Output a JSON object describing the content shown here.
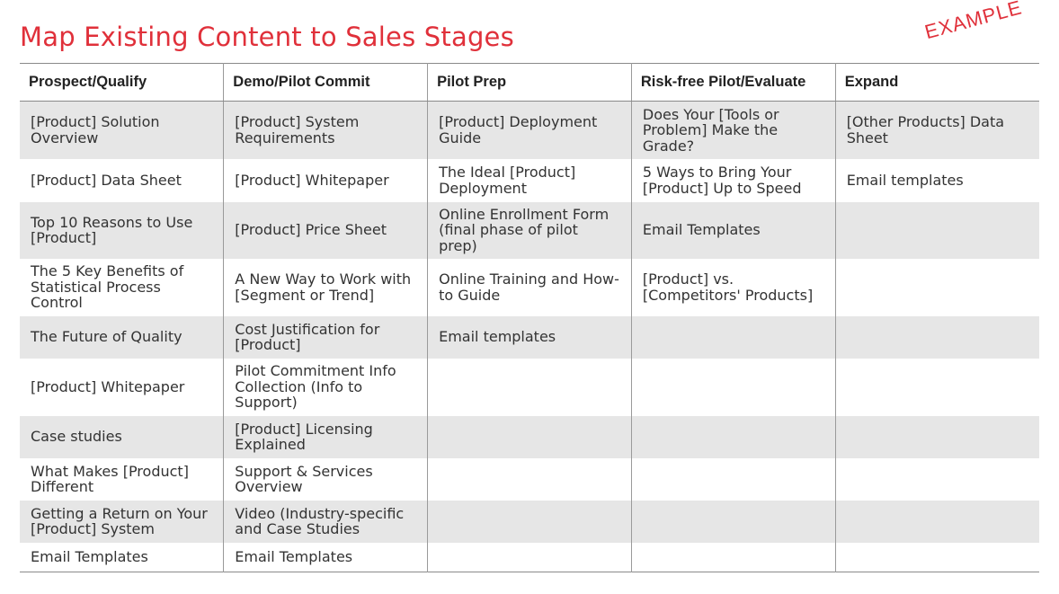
{
  "title": "Map Existing Content to Sales Stages",
  "stamp": "EXAMPLE",
  "accent_color": "#e0303a",
  "table": {
    "headers": [
      "Prospect/Qualify",
      "Demo/Pilot Commit",
      "Pilot Prep",
      "Risk-free Pilot/Evaluate",
      "Expand"
    ],
    "rows": [
      [
        "[Product] Solution Overview",
        "[Product] System Requirements",
        "[Product] Deployment Guide",
        "Does Your [Tools or Problem] Make the Grade?",
        "[Other Products] Data Sheet"
      ],
      [
        "[Product] Data Sheet",
        "[Product] Whitepaper",
        "The Ideal [Product] Deployment",
        "5 Ways to Bring Your [Product] Up to Speed",
        "Email templates"
      ],
      [
        "Top 10 Reasons to Use [Product]",
        "[Product] Price Sheet",
        "Online Enrollment Form (final phase of pilot prep)",
        "Email Templates",
        ""
      ],
      [
        "The 5 Key Benefits of Statistical Process Control",
        "A New Way to Work with [Segment or Trend]",
        "Online Training and How-to Guide",
        "[Product] vs. [Competitors' Products]",
        ""
      ],
      [
        "The Future of Quality",
        "Cost Justification for [Product]",
        "Email templates",
        "",
        ""
      ],
      [
        "[Product] Whitepaper",
        "Pilot Commitment Info Collection (Info to Support)",
        "",
        "",
        ""
      ],
      [
        "Case studies",
        "[Product]  Licensing Explained",
        "",
        "",
        ""
      ],
      [
        "What Makes [Product] Different",
        "Support & Services Overview",
        "",
        "",
        ""
      ],
      [
        "Getting a Return on Your [Product] System",
        "Video (Industry-specific and Case Studies",
        "",
        "",
        ""
      ],
      [
        "Email Templates",
        "Email Templates",
        "",
        "",
        ""
      ]
    ]
  }
}
